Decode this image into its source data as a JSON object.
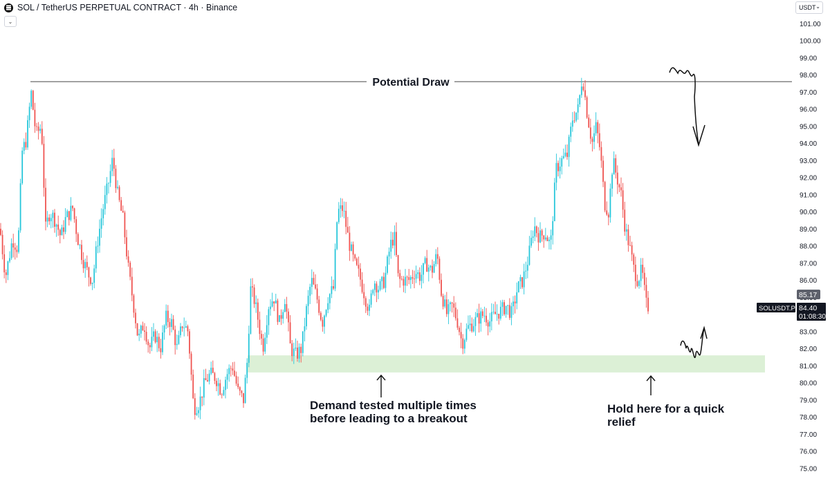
{
  "header": {
    "title": "SOL / TetherUS PERPETUAL CONTRACT · 4h · Binance",
    "collapse_icon": "chevron-down-icon"
  },
  "currency_selector": {
    "label": "USDT",
    "icon": "chevron-down-icon"
  },
  "price_axis": {
    "ticks": [
      "101.00",
      "100.00",
      "99.00",
      "98.00",
      "97.00",
      "96.00",
      "95.00",
      "94.00",
      "93.00",
      "92.00",
      "91.00",
      "90.00",
      "89.00",
      "88.00",
      "87.00",
      "86.00",
      "85.00",
      "84.00",
      "83.00",
      "82.00",
      "81.00",
      "80.00",
      "79.00",
      "78.00",
      "77.00",
      "76.00",
      "75.00"
    ]
  },
  "badges": {
    "prev_price": "85.17",
    "symbol": "SOLUSDT.P",
    "last_price": "84.40",
    "countdown": "01:08:30"
  },
  "annotations": {
    "potential_draw": "Potential Draw",
    "demand_line1": "Demand tested multiple times",
    "demand_line2": "before leading to a breakout",
    "hold_line1": "Hold here for a quick",
    "hold_line2": "relief"
  },
  "colors": {
    "up": "#26c6da",
    "down": "#ef5350",
    "zone": "#dcf0d6",
    "text": "#131722",
    "badge_dark": "#131722",
    "badge_grey": "#5d606b"
  },
  "chart_data": {
    "type": "candlestick",
    "title": "SOL / TetherUS PERPETUAL CONTRACT · 4h · Binance",
    "ylim": [
      75,
      101
    ],
    "grid": false,
    "levels": [
      {
        "label": "Potential Draw",
        "price": 97.6
      }
    ],
    "zones": [
      {
        "label": "Demand",
        "from": 80.6,
        "to": 81.6
      }
    ],
    "last_price": 84.4,
    "path": [
      [
        0,
        89.0
      ],
      [
        8,
        86.2
      ],
      [
        18,
        88.4
      ],
      [
        26,
        87.8
      ],
      [
        32,
        93.5
      ],
      [
        38,
        94.2
      ],
      [
        45,
        97.0
      ],
      [
        52,
        94.5
      ],
      [
        60,
        95.0
      ],
      [
        66,
        89.0
      ],
      [
        72,
        90.0
      ],
      [
        80,
        89.5
      ],
      [
        88,
        88.5
      ],
      [
        95,
        89.6
      ],
      [
        105,
        90.2
      ],
      [
        112,
        88.5
      ],
      [
        120,
        87.2
      ],
      [
        128,
        86.3
      ],
      [
        134,
        86.0
      ],
      [
        140,
        88.0
      ],
      [
        148,
        90.0
      ],
      [
        156,
        91.5
      ],
      [
        163,
        93.1
      ],
      [
        170,
        91.0
      ],
      [
        178,
        89.5
      ],
      [
        186,
        86.5
      ],
      [
        194,
        84.3
      ],
      [
        200,
        82.5
      ],
      [
        208,
        83.5
      ],
      [
        216,
        82.0
      ],
      [
        224,
        82.8
      ],
      [
        232,
        82.0
      ],
      [
        240,
        83.8
      ],
      [
        248,
        83.5
      ],
      [
        256,
        82.0
      ],
      [
        264,
        83.5
      ],
      [
        272,
        83.0
      ],
      [
        280,
        78.5
      ],
      [
        288,
        78.8
      ],
      [
        296,
        80.0
      ],
      [
        304,
        80.5
      ],
      [
        312,
        80.3
      ],
      [
        320,
        79.5
      ],
      [
        328,
        80.5
      ],
      [
        336,
        81.0
      ],
      [
        344,
        79.5
      ],
      [
        352,
        79.0
      ],
      [
        358,
        81.5
      ],
      [
        362,
        85.5
      ],
      [
        368,
        84.8
      ],
      [
        374,
        83.5
      ],
      [
        380,
        82.0
      ],
      [
        388,
        84.5
      ],
      [
        396,
        85.0
      ],
      [
        404,
        83.5
      ],
      [
        412,
        85.0
      ],
      [
        420,
        82.0
      ],
      [
        428,
        81.6
      ],
      [
        436,
        82.0
      ],
      [
        442,
        84.0
      ],
      [
        450,
        86.0
      ],
      [
        458,
        85.0
      ],
      [
        466,
        83.5
      ],
      [
        474,
        85.0
      ],
      [
        482,
        85.5
      ],
      [
        488,
        90.0
      ],
      [
        496,
        90.2
      ],
      [
        504,
        88.3
      ],
      [
        512,
        87.0
      ],
      [
        520,
        86.2
      ],
      [
        528,
        85.0
      ],
      [
        534,
        84.2
      ],
      [
        540,
        86.0
      ],
      [
        548,
        85.5
      ],
      [
        556,
        86.0
      ],
      [
        564,
        88.0
      ],
      [
        570,
        88.6
      ],
      [
        576,
        86.0
      ],
      [
        584,
        86.0
      ],
      [
        592,
        86.0
      ],
      [
        600,
        86.5
      ],
      [
        608,
        86.2
      ],
      [
        616,
        87.0
      ],
      [
        624,
        86.5
      ],
      [
        632,
        87.5
      ],
      [
        638,
        85.3
      ],
      [
        646,
        84.0
      ],
      [
        654,
        84.5
      ],
      [
        662,
        83.5
      ],
      [
        668,
        82.3
      ],
      [
        676,
        83.2
      ],
      [
        684,
        83.5
      ],
      [
        692,
        83.8
      ],
      [
        700,
        84.0
      ],
      [
        708,
        83.6
      ],
      [
        716,
        84.0
      ],
      [
        724,
        84.2
      ],
      [
        732,
        84.5
      ],
      [
        740,
        84.0
      ],
      [
        748,
        85.5
      ],
      [
        756,
        86.0
      ],
      [
        764,
        87.3
      ],
      [
        772,
        89.2
      ],
      [
        780,
        88.5
      ],
      [
        788,
        88.8
      ],
      [
        796,
        88.0
      ],
      [
        804,
        92.5
      ],
      [
        812,
        93.0
      ],
      [
        820,
        93.3
      ],
      [
        828,
        95.5
      ],
      [
        836,
        96.0
      ],
      [
        842,
        98.0
      ],
      [
        848,
        96.0
      ],
      [
        856,
        94.0
      ],
      [
        862,
        95.0
      ],
      [
        868,
        93.5
      ],
      [
        874,
        90.5
      ],
      [
        880,
        90.0
      ],
      [
        886,
        93.0
      ],
      [
        892,
        92.0
      ],
      [
        898,
        91.0
      ],
      [
        904,
        89.0
      ],
      [
        910,
        88.0
      ],
      [
        916,
        86.7
      ],
      [
        922,
        86.0
      ],
      [
        928,
        86.6
      ],
      [
        934,
        84.6
      ],
      [
        938,
        84.4
      ]
    ]
  }
}
